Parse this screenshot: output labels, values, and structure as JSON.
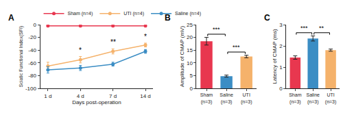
{
  "chart_data": [
    {
      "type": "line",
      "label": "A",
      "categories": [
        "1 d",
        "4 d",
        "7 d",
        "14 d"
      ],
      "x_label": "Days post-operation",
      "y_label": "Sciatic Functional Index(SFI)",
      "ylim": [
        -100,
        0
      ],
      "yticks": [
        0,
        -20,
        -40,
        -60,
        -80,
        -100
      ],
      "grid": false,
      "legend": "top",
      "series": [
        {
          "name": "Sham (n=4)",
          "color": "#e8374f",
          "marker": "circle",
          "values": [
            -2,
            -2,
            -2,
            -2
          ],
          "errors": [
            1,
            1,
            1,
            1
          ]
        },
        {
          "name": "UTI (n=4)",
          "color": "#f5b26b",
          "marker": "circle",
          "values": [
            -65,
            -55,
            -42,
            -32
          ],
          "errors": [
            6,
            5,
            4,
            3
          ]
        },
        {
          "name": "Saline (n=4)",
          "color": "#3b8dc4",
          "marker": "circle",
          "values": [
            -71,
            -68,
            -62,
            -42
          ],
          "errors": [
            5,
            4,
            3,
            3
          ]
        }
      ],
      "annotations": [
        {
          "x": "4 d",
          "text": "*"
        },
        {
          "x": "7 d",
          "text": "**"
        },
        {
          "x": "14 d",
          "text": "*"
        }
      ]
    },
    {
      "type": "bar",
      "label": "B",
      "categories": [
        "Sham\n(n=3)",
        "Saline\n(n=3)",
        "UTI\n(n=3)"
      ],
      "y_label": "Amplitude of CMAP (mV)",
      "ylim": [
        0,
        25
      ],
      "yticks": [
        0,
        5,
        10,
        15,
        20,
        25
      ],
      "grid": false,
      "values": [
        18.5,
        4.8,
        12.5
      ],
      "errors": [
        1.5,
        0.4,
        0.5
      ],
      "colors": [
        "#e8374f",
        "#3b8dc4",
        "#f5b26b"
      ],
      "comparisons": [
        {
          "between": [
            "Sham\n(n=3)",
            "Saline\n(n=3)"
          ],
          "text": "***"
        },
        {
          "between": [
            "Saline\n(n=3)",
            "UTI\n(n=3)"
          ],
          "text": "***"
        }
      ]
    },
    {
      "type": "bar",
      "label": "C",
      "categories": [
        "Sham\n(n=3)",
        "Saline\n(n=3)",
        "UTI\n(n=3)"
      ],
      "y_label": "Latency of CMAP (ms)",
      "ylim": [
        0,
        3
      ],
      "yticks": [
        0,
        1,
        2,
        3
      ],
      "grid": false,
      "values": [
        1.45,
        2.35,
        1.8
      ],
      "errors": [
        0.08,
        0.12,
        0.05
      ],
      "colors": [
        "#e8374f",
        "#3b8dc4",
        "#f5b26b"
      ],
      "comparisons": [
        {
          "between": [
            "Sham\n(n=3)",
            "Saline\n(n=3)"
          ],
          "text": "***"
        },
        {
          "between": [
            "Saline\n(n=3)",
            "UTI\n(n=3)"
          ],
          "text": "**"
        }
      ]
    }
  ]
}
